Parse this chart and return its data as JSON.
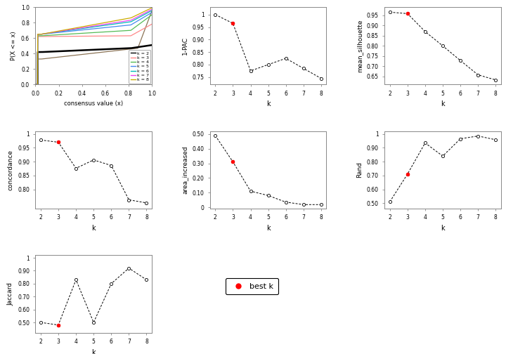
{
  "k_values": [
    2,
    3,
    4,
    5,
    6,
    7,
    8
  ],
  "one_minus_pac": [
    1.0,
    0.965,
    0.775,
    0.8,
    0.825,
    0.785,
    0.745
  ],
  "one_minus_pac_best_k": 3,
  "mean_silhouette": [
    0.965,
    0.958,
    0.87,
    0.8,
    0.728,
    0.658,
    0.633
  ],
  "mean_silhouette_best_k": 3,
  "concordance": [
    0.978,
    0.97,
    0.876,
    0.906,
    0.886,
    0.762,
    0.751
  ],
  "concordance_best_k": 3,
  "area_increased": [
    0.49,
    0.31,
    0.11,
    0.08,
    0.035,
    0.018,
    0.018
  ],
  "area_increased_best_k": 3,
  "rand": [
    0.51,
    0.71,
    0.935,
    0.84,
    0.965,
    0.985,
    0.958
  ],
  "rand_best_k": 3,
  "jaccard": [
    0.5,
    0.48,
    0.83,
    0.5,
    0.8,
    0.92,
    0.83
  ],
  "jaccard_best_k": 3,
  "ecdf_k_labels": [
    "k = 2",
    "k = 3",
    "k = 4",
    "k = 5",
    "k = 6",
    "k = 7",
    "k = 8"
  ],
  "ecdf_colors": [
    "black",
    "#FF8888",
    "#55BB55",
    "#4488EE",
    "#00BBBB",
    "#EE44EE",
    "#CCAA00"
  ],
  "ecdf_brown_color": "#8B7355",
  "bg_color": "white"
}
